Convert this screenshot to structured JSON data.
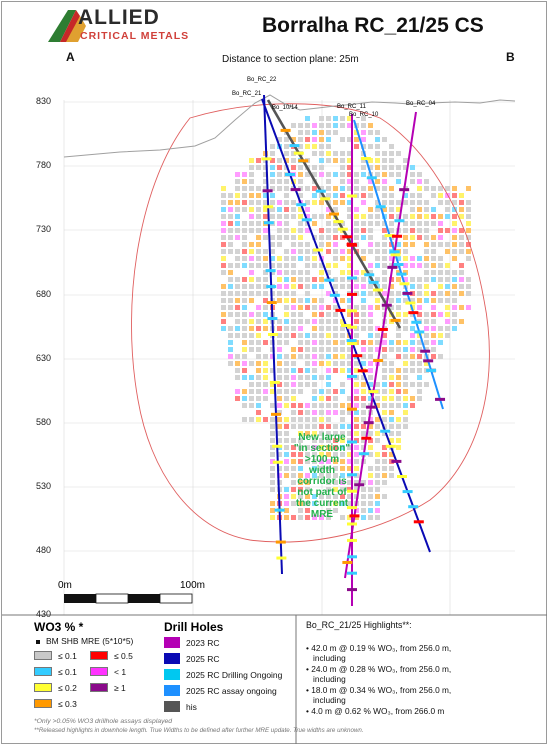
{
  "header": {
    "logo_word": "ALLIED",
    "logo_sub": "CRITICAL METALS",
    "title": "Borralha RC_21/25 CS",
    "section_left": "A",
    "section_right": "B",
    "distance_note": "Distance to section plane: 25m"
  },
  "y_axis": {
    "labels": [
      "830",
      "780",
      "730",
      "680",
      "630",
      "580",
      "530",
      "480",
      "430"
    ]
  },
  "scale_bar": {
    "start_label": "0m",
    "end_label": "100m"
  },
  "drill_hole_labels": [
    "Bo_RC_22",
    "Bo_RC_21",
    "Bo_10/14",
    "Bo_RC_11",
    "Bo_RC_10",
    "Bo_RC_04"
  ],
  "annotation": {
    "lines": [
      "New large",
      "\"in section\"",
      ">100 m",
      "width",
      "corridor is",
      "not part of",
      "the current",
      "MRE"
    ],
    "color": "#22b14c"
  },
  "legend_wo3": {
    "title": "WO3 % *",
    "model_label": "BM SHB MRE (5*10*5)",
    "items": [
      {
        "label": "≤ 0.1",
        "color": "#c8c8c8"
      },
      {
        "label": "≤ 0.5",
        "color": "#ff0000"
      },
      {
        "label": "≤ 0.1",
        "color": "#33ccff"
      },
      {
        "label": "< 1",
        "color": "#ff33ff"
      },
      {
        "label": "≤ 0.2",
        "color": "#ffff33"
      },
      {
        "label": "≥ 1",
        "color": "#8a0a8a"
      },
      {
        "label": "≤ 0.3",
        "color": "#ff9900"
      }
    ]
  },
  "legend_holes": {
    "title": "Drill Holes",
    "items": [
      {
        "label": "2023 RC",
        "color": "#b400b4"
      },
      {
        "label": "2025 RC",
        "color": "#0a0ab4"
      },
      {
        "label": "2025 RC Drilling Ongoing",
        "color": "#00c8f0"
      },
      {
        "label": "2025 RC assay ongoing",
        "color": "#1e90ff"
      },
      {
        "label": "his",
        "color": "#555555"
      }
    ]
  },
  "highlights": {
    "title": "Bo_RC_21/25 Highlights**:",
    "lines": [
      "• 42.0 m @ 0.19 % WO₃, from 256.0 m,",
      "including",
      "• 24.0 m @ 0.28 % WO₃, from 256.0 m,",
      "including",
      "• 18.0 m @ 0.34 % WO₃, from 256.0 m,",
      "including",
      "• 4.0 m @ 0.62 % WO₃, from 266.0 m"
    ]
  },
  "notes": [
    "*Only >0.05% WO3 drillhole assays displayed",
    "**Released highlights in downhole length. True Widths to be defined after further MRE update. True widths are unknown."
  ]
}
